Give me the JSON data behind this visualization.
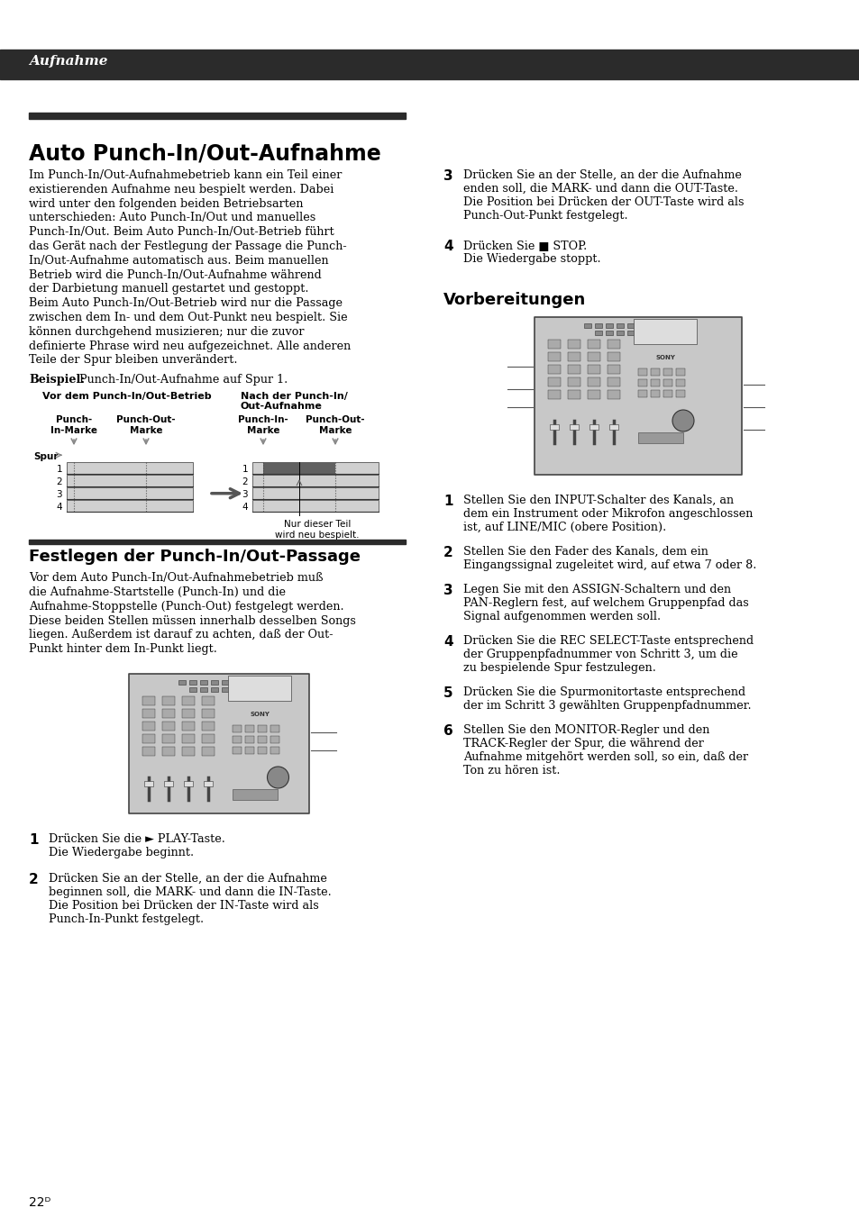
{
  "page_bg": "#ffffff",
  "header_bg": "#2b2b2b",
  "header_text": "Aufnahme",
  "header_text_color": "#ffffff",
  "title_bar_color": "#2b2b2b",
  "main_title": "Auto Punch-In/Out-Aufnahme",
  "body_text_left": [
    "Im Punch-In/Out-Aufnahmebetrieb kann ein Teil einer",
    "existierenden Aufnahme neu bespielt werden. Dabei",
    "wird unter den folgenden beiden Betriebsarten",
    "unterschieden: Auto Punch-In/Out und manuelles",
    "Punch-In/Out. Beim Auto Punch-In/Out-Betrieb führt",
    "das Gerät nach der Festlegung der Passage die Punch-",
    "In/Out-Aufnahme automatisch aus. Beim manuellen",
    "Betrieb wird die Punch-In/Out-Aufnahme während",
    "der Darbietung manuell gestartet und gestoppt.",
    "Beim Auto Punch-In/Out-Betrieb wird nur die Passage",
    "zwischen dem In- und dem Out-Punkt neu bespielt. Sie",
    "können durchgehend musizieren; nur die zuvor",
    "definierte Phrase wird neu aufgezeichnet. Alle anderen",
    "Teile der Spur bleiben unverändert."
  ],
  "section2_title": "Festlegen der Punch-In/Out-Passage",
  "section2_body": [
    "Vor dem Auto Punch-In/Out-Aufnahmebetrieb muß",
    "die Aufnahme-Startstelle (Punch-In) und die",
    "Aufnahme-Stoppstelle (Punch-Out) festgelegt werden.",
    "Diese beiden Stellen müssen innerhalb desselben Songs",
    "liegen. Außerdem ist darauf zu achten, daß der Out-",
    "Punkt hinter dem In-Punkt liegt."
  ],
  "vorbereitungen_title": "Vorbereitungen",
  "page_number": "22ᴰ",
  "track_fill_light": "#d0d0d0",
  "track_fill_dark": "#606060",
  "arrow_color": "#888888",
  "device_fill": "#cccccc",
  "device_border": "#555555"
}
